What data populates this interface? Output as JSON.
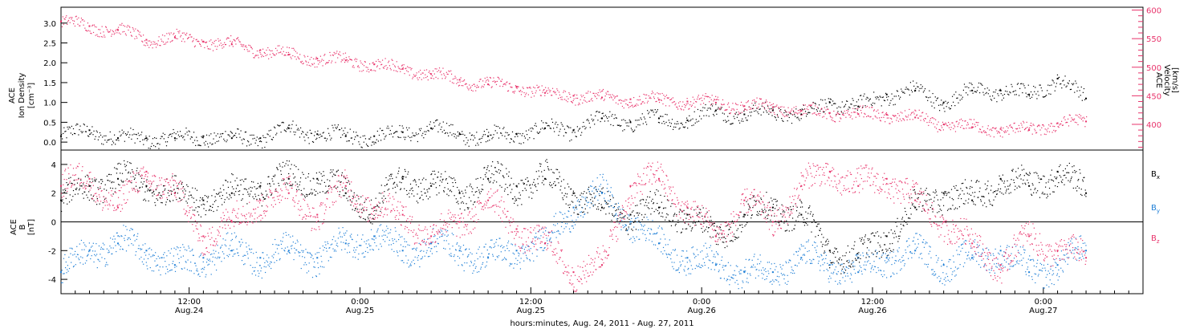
{
  "chart_data": [
    {
      "type": "scatter",
      "ylabel_left": [
        "ACE",
        "Ion Density",
        "[cm⁻³]"
      ],
      "ylabel_right": [
        "ACE",
        "Velocity",
        "[km/s]"
      ],
      "xlim_hours": [
        0,
        76
      ],
      "ylim_left": [
        -0.2,
        3.4
      ],
      "yticks_left": [
        {
          "value": 0.0,
          "label": "0.0"
        },
        {
          "value": 0.5,
          "label": "0.5"
        },
        {
          "value": 1.0,
          "label": "1.0"
        },
        {
          "value": 1.5,
          "label": "1.5"
        },
        {
          "value": 2.0,
          "label": "2.0"
        },
        {
          "value": 2.5,
          "label": "2.5"
        },
        {
          "value": 3.0,
          "label": "3.0"
        }
      ],
      "ylim_right": [
        355,
        605
      ],
      "yticks_right": [
        {
          "value": 400,
          "label": "400"
        },
        {
          "value": 450,
          "label": "450"
        },
        {
          "value": 500,
          "label": "500"
        },
        {
          "value": 550,
          "label": "550"
        },
        {
          "value": 600,
          "label": "600"
        }
      ],
      "series": [
        {
          "key": "density",
          "axis": "left",
          "color": "#000000",
          "hours": [
            0,
            2,
            4,
            6,
            8,
            10,
            12,
            14,
            16,
            18,
            20,
            22,
            24,
            26,
            28,
            30,
            32,
            34,
            36,
            38,
            40,
            42,
            44,
            46,
            48,
            50,
            52,
            54,
            56,
            58,
            60,
            62,
            64,
            66,
            68,
            70,
            72
          ],
          "values": [
            0.15,
            0.3,
            0.1,
            0.1,
            0.1,
            0.15,
            0.1,
            0.1,
            0.35,
            0.2,
            0.15,
            0.15,
            0.25,
            0.35,
            0.2,
            0.15,
            0.2,
            0.35,
            0.3,
            0.6,
            0.5,
            0.6,
            0.55,
            0.8,
            0.7,
            0.8,
            0.7,
            1.0,
            0.9,
            1.2,
            1.3,
            1.0,
            1.3,
            1.3,
            1.2,
            1.6,
            1.1
          ]
        },
        {
          "key": "velocity",
          "axis": "right",
          "color": "#e8336b",
          "hours": [
            0,
            2,
            4,
            6,
            8,
            10,
            12,
            14,
            16,
            18,
            20,
            22,
            24,
            26,
            28,
            30,
            32,
            34,
            36,
            38,
            40,
            42,
            44,
            46,
            48,
            50,
            52,
            54,
            56,
            58,
            60,
            62,
            64,
            66,
            68,
            70,
            72
          ],
          "values": [
            580,
            572,
            565,
            548,
            552,
            545,
            540,
            530,
            522,
            515,
            512,
            505,
            497,
            488,
            478,
            470,
            466,
            455,
            450,
            447,
            444,
            443,
            440,
            438,
            432,
            430,
            424,
            420,
            418,
            417,
            412,
            400,
            395,
            392,
            390,
            402,
            405
          ]
        }
      ]
    },
    {
      "type": "scatter",
      "ylabel": [
        "ACE",
        "B",
        "[nT]"
      ],
      "xlabel": "hours:minutes, Aug. 24, 2011 - Aug. 27, 2011",
      "xlim_hours": [
        0,
        76
      ],
      "ylim": [
        -5,
        5
      ],
      "yticks": [
        {
          "value": -4,
          "label": "-4"
        },
        {
          "value": -2,
          "label": "-2"
        },
        {
          "value": 0,
          "label": "0"
        },
        {
          "value": 2,
          "label": "2"
        },
        {
          "value": 4,
          "label": "4"
        }
      ],
      "xticks": [
        {
          "hour": 9,
          "label": "12:00",
          "sublabel": "Aug.24"
        },
        {
          "hour": 21,
          "label": "0:00",
          "sublabel": "Aug.25"
        },
        {
          "hour": 33,
          "label": "12:00",
          "sublabel": "Aug.25"
        },
        {
          "hour": 45,
          "label": "0:00",
          "sublabel": "Aug.26"
        },
        {
          "hour": 57,
          "label": "12:00",
          "sublabel": "Aug.26"
        },
        {
          "hour": 69,
          "label": "0:00",
          "sublabel": "Aug.27"
        }
      ],
      "series": [
        {
          "key": "bx",
          "name": "Bx",
          "name_main": "B",
          "name_sub": "x",
          "color": "#000000",
          "hours": [
            0,
            2,
            4,
            6,
            8,
            10,
            12,
            14,
            16,
            18,
            20,
            22,
            24,
            26,
            28,
            30,
            32,
            34,
            36,
            38,
            40,
            42,
            44,
            46,
            48,
            50,
            52,
            54,
            56,
            58,
            60,
            62,
            64,
            66,
            68,
            70,
            72
          ],
          "values": [
            1.5,
            2.5,
            3.0,
            2.5,
            2.0,
            1.5,
            2.0,
            2.5,
            3.0,
            3.0,
            2.0,
            1.0,
            3.0,
            2.5,
            2.0,
            3.0,
            2.5,
            3.0,
            2.0,
            1.0,
            0.5,
            1.0,
            0.5,
            -1.0,
            0.5,
            1.0,
            0.5,
            -2.0,
            -2.5,
            -1.0,
            1.0,
            2.0,
            1.5,
            3.0,
            2.5,
            3.5,
            2.0
          ]
        },
        {
          "key": "by",
          "name": "By",
          "name_main": "B",
          "name_sub": "y",
          "color": "#1f7fd6",
          "hours": [
            0,
            2,
            4,
            6,
            8,
            10,
            12,
            14,
            16,
            18,
            20,
            22,
            24,
            26,
            28,
            30,
            32,
            34,
            36,
            38,
            40,
            42,
            44,
            46,
            48,
            50,
            52,
            54,
            56,
            58,
            60,
            62,
            64,
            66,
            68,
            70,
            72
          ],
          "values": [
            -3.5,
            -2.0,
            -1.5,
            -2.0,
            -3.0,
            -2.5,
            -2.0,
            -2.5,
            -2.0,
            -2.5,
            -1.5,
            -1.0,
            -2.0,
            -1.5,
            -2.0,
            -2.5,
            -2.0,
            -1.5,
            1.0,
            2.0,
            0.0,
            -1.5,
            -2.5,
            -3.0,
            -3.5,
            -3.5,
            -2.5,
            -3.0,
            -3.5,
            -2.5,
            -2.0,
            -3.0,
            -2.5,
            -2.0,
            -3.5,
            -3.0,
            -2.0
          ]
        },
        {
          "key": "bz",
          "name": "Bz",
          "name_main": "B",
          "name_sub": "z",
          "color": "#e8336b",
          "hours": [
            0,
            2,
            4,
            6,
            8,
            10,
            12,
            14,
            16,
            18,
            20,
            22,
            24,
            26,
            28,
            30,
            32,
            34,
            36,
            38,
            40,
            42,
            44,
            46,
            48,
            50,
            52,
            54,
            56,
            58,
            60,
            62,
            64,
            66,
            68,
            70,
            72
          ],
          "values": [
            2.5,
            3.0,
            1.0,
            3.5,
            2.0,
            -1.0,
            0.0,
            1.5,
            2.0,
            0.5,
            2.5,
            1.0,
            0.5,
            -1.0,
            0.0,
            1.5,
            -0.5,
            -1.5,
            -3.5,
            -3.0,
            2.5,
            3.0,
            1.0,
            -1.0,
            1.5,
            0.0,
            2.5,
            3.5,
            2.5,
            3.0,
            1.5,
            0.0,
            -1.5,
            -3.0,
            -1.0,
            -2.0,
            -2.5
          ]
        }
      ]
    }
  ]
}
